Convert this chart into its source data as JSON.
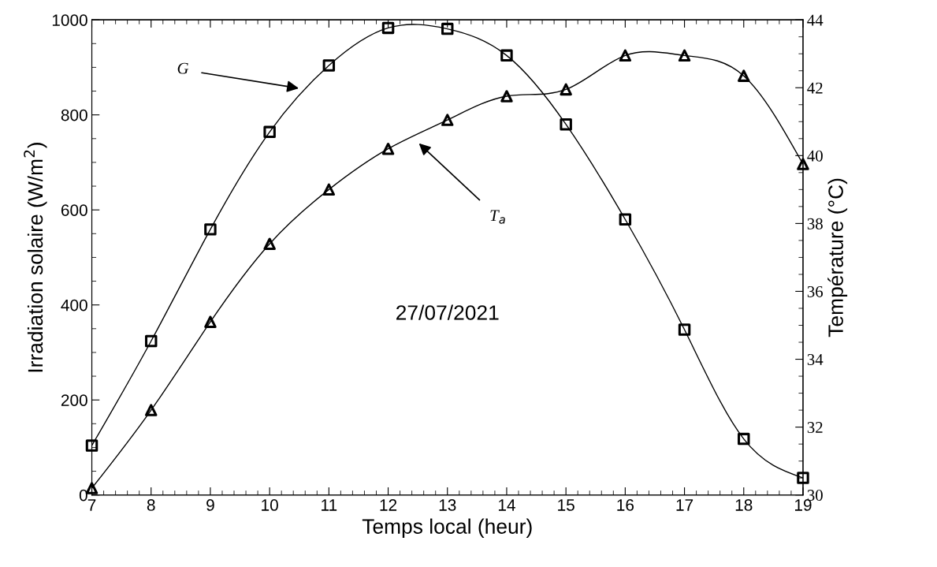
{
  "chart_data": {
    "type": "line",
    "xlabel": "Temps local (heur)",
    "ylabel": "Irradiation solaire (W/m$^{2}$)",
    "y2label": "Température (°C)",
    "x": [
      7,
      8,
      9,
      10,
      11,
      12,
      13,
      14,
      15,
      16,
      17,
      18,
      19
    ],
    "series": [
      {
        "color": "#000000",
        "marker": "square",
        "axis": "y",
        "values": [
          104,
          324,
          559,
          764,
          904,
          983,
          981,
          925,
          780,
          580,
          348,
          118,
          36
        ]
      },
      {
        "color": "#000000",
        "marker": "triangle",
        "axis": "y2",
        "values": [
          30.2,
          32.5,
          35.1,
          37.4,
          39.0,
          40.2,
          41.05,
          41.75,
          41.95,
          42.95,
          42.95,
          42.35,
          39.75
        ]
      }
    ],
    "xlim": [
      7,
      19
    ],
    "xticks": [
      7,
      8,
      9,
      10,
      11,
      12,
      13,
      14,
      15,
      16,
      17,
      18,
      19
    ],
    "ylim": [
      0,
      1000
    ],
    "yticks": [
      0,
      200,
      400,
      600,
      800,
      1000
    ],
    "y2lim": [
      30,
      44
    ],
    "y2ticks": [
      30,
      32,
      34,
      36,
      38,
      40,
      42,
      44
    ],
    "grid": false,
    "legend": false,
    "line_style": "solid",
    "annotations": [
      "G",
      "T$_{a}$",
      "27/07/2021"
    ]
  }
}
